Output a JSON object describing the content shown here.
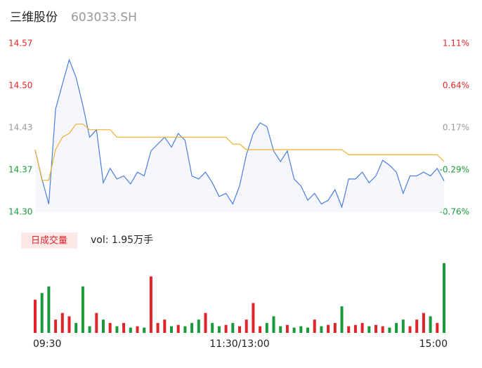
{
  "chart_data": {
    "type": "intraday",
    "title": "三维股份",
    "subtitle": "603033.SH",
    "xlim": [
      0,
      240
    ],
    "xticks": [
      {
        "value": 0,
        "label": "09:30"
      },
      {
        "value": 120,
        "label": "11:30/13:00"
      },
      {
        "value": 240,
        "label": "15:00"
      }
    ],
    "ylim": [
      14.3,
      14.57
    ],
    "yticks": [
      {
        "value": 14.3,
        "label": "14.30"
      },
      {
        "value": 14.3675,
        "label": "14.37"
      },
      {
        "value": 14.435,
        "label": "14.43"
      },
      {
        "value": 14.5025,
        "label": "14.50"
      },
      {
        "value": 14.57,
        "label": "14.57"
      }
    ],
    "y2lim": [
      -0.76,
      1.11
    ],
    "y2ticks": [
      {
        "value": -0.76,
        "label": "-0.76%"
      },
      {
        "value": -0.2925,
        "label": "-0.29%"
      },
      {
        "value": 0.175,
        "label": "0.17%"
      },
      {
        "value": 0.6425,
        "label": "0.64%"
      },
      {
        "value": 1.11,
        "label": "1.11%"
      }
    ],
    "tick_colors": [
      "#1a9a3a",
      "#1a9a3a",
      "#999999",
      "#e0252a",
      "#e0252a"
    ],
    "x": [
      0,
      4,
      8,
      12,
      16,
      20,
      24,
      28,
      32,
      36,
      40,
      44,
      48,
      52,
      56,
      60,
      64,
      68,
      72,
      76,
      80,
      84,
      88,
      92,
      96,
      100,
      104,
      108,
      112,
      116,
      120,
      124,
      128,
      132,
      136,
      140,
      144,
      148,
      152,
      156,
      160,
      164,
      168,
      172,
      176,
      180,
      184,
      188,
      192,
      196,
      200,
      204,
      208,
      212,
      216,
      220,
      224,
      228,
      232,
      236,
      240
    ],
    "series": [
      {
        "color": "#4a7de0",
        "values": [
          14.4,
          14.353,
          14.313,
          14.465,
          14.505,
          14.544,
          14.516,
          14.471,
          14.42,
          14.432,
          14.347,
          14.37,
          14.353,
          14.358,
          14.345,
          14.364,
          14.358,
          14.398,
          14.409,
          14.42,
          14.404,
          14.426,
          14.415,
          14.358,
          14.353,
          14.364,
          14.347,
          14.325,
          14.33,
          14.313,
          14.342,
          14.392,
          14.426,
          14.443,
          14.437,
          14.398,
          14.381,
          14.398,
          14.353,
          14.342,
          14.319,
          14.33,
          14.313,
          14.319,
          14.336,
          14.308,
          14.353,
          14.353,
          14.364,
          14.347,
          14.358,
          14.383,
          14.375,
          14.364,
          14.33,
          14.358,
          14.358,
          14.364,
          14.358,
          14.37,
          14.35
        ]
      },
      {
        "color": "#f0b030",
        "values": [
          14.4,
          14.351,
          14.351,
          14.4,
          14.42,
          14.426,
          14.441,
          14.441,
          14.432,
          14.432,
          14.432,
          14.432,
          14.42,
          14.42,
          14.42,
          14.42,
          14.42,
          14.42,
          14.42,
          14.42,
          14.42,
          14.42,
          14.42,
          14.42,
          14.42,
          14.42,
          14.42,
          14.42,
          14.42,
          14.409,
          14.409,
          14.4,
          14.4,
          14.4,
          14.4,
          14.4,
          14.4,
          14.4,
          14.4,
          14.4,
          14.4,
          14.4,
          14.4,
          14.4,
          14.4,
          14.4,
          14.392,
          14.392,
          14.392,
          14.392,
          14.392,
          14.392,
          14.392,
          14.392,
          14.392,
          14.392,
          14.392,
          14.392,
          14.392,
          14.392,
          14.381
        ]
      }
    ],
    "volume_button": "日成交量",
    "volume_label": "vol: 1.95万手",
    "volume_lim": [
      0,
      1100
    ],
    "volume": [
      500,
      600,
      700,
      200,
      300,
      250,
      150,
      700,
      100,
      300,
      200,
      150,
      100,
      150,
      80,
      100,
      80,
      850,
      150,
      200,
      100,
      120,
      100,
      150,
      200,
      300,
      150,
      100,
      120,
      150,
      100,
      200,
      450,
      100,
      150,
      250,
      100,
      120,
      80,
      100,
      80,
      200,
      100,
      120,
      150,
      400,
      100,
      120,
      150,
      100,
      120,
      100,
      80,
      150,
      200,
      100,
      200,
      300,
      250,
      150,
      1050
    ]
  }
}
